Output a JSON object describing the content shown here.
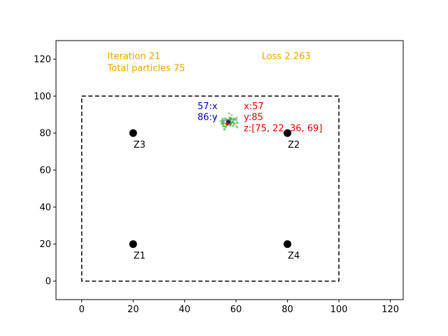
{
  "chart_data": {
    "type": "scatter",
    "title": "",
    "xlabel": "",
    "ylabel": "",
    "xlim": [
      -10,
      125
    ],
    "ylim": [
      -10,
      130
    ],
    "x_ticks": [
      0,
      20,
      40,
      60,
      80,
      100,
      120
    ],
    "y_ticks": [
      0,
      20,
      40,
      60,
      80,
      100,
      120
    ],
    "grid": false,
    "boundary": {
      "x0": 0,
      "y0": 0,
      "x1": 100,
      "y1": 100,
      "style": "dashed",
      "color": "#000000"
    },
    "zones": [
      {
        "label": "Z1",
        "x": 20,
        "y": 20
      },
      {
        "label": "Z2",
        "x": 80,
        "y": 80
      },
      {
        "label": "Z3",
        "x": 20,
        "y": 80
      },
      {
        "label": "Z4",
        "x": 80,
        "y": 20
      }
    ],
    "particles": {
      "color": "#2ca02c",
      "count": 75,
      "center": [
        57,
        86
      ],
      "spread": [
        2.0,
        1.7
      ]
    },
    "best_blue": {
      "x": 57,
      "y": 86,
      "color": "#0000cc"
    },
    "best_red": {
      "x": 57,
      "y": 85,
      "color": "#dd0000"
    },
    "annotations": {
      "iteration": {
        "text": "Iteration 21",
        "x": 10,
        "y": 120,
        "color": "#f0a000"
      },
      "particles": {
        "text": "Total particles 75",
        "x": 10,
        "y": 113.5,
        "color": "#f0a000"
      },
      "loss": {
        "text": "Loss 2.263",
        "x": 70,
        "y": 120,
        "color": "#f0a000"
      },
      "blue_x": {
        "text": "57:x",
        "x": 45,
        "y": 93,
        "color": "#0000cc"
      },
      "blue_y": {
        "text": "86:y",
        "x": 45,
        "y": 87,
        "color": "#0000cc"
      },
      "red_x": {
        "text": "x:57",
        "x": 63,
        "y": 93,
        "color": "#dd0000"
      },
      "red_y": {
        "text": "y:85",
        "x": 63,
        "y": 87,
        "color": "#dd0000"
      },
      "red_z": {
        "text": "z:[75, 22, 36, 69]",
        "x": 63,
        "y": 81,
        "color": "#dd0000"
      }
    }
  }
}
